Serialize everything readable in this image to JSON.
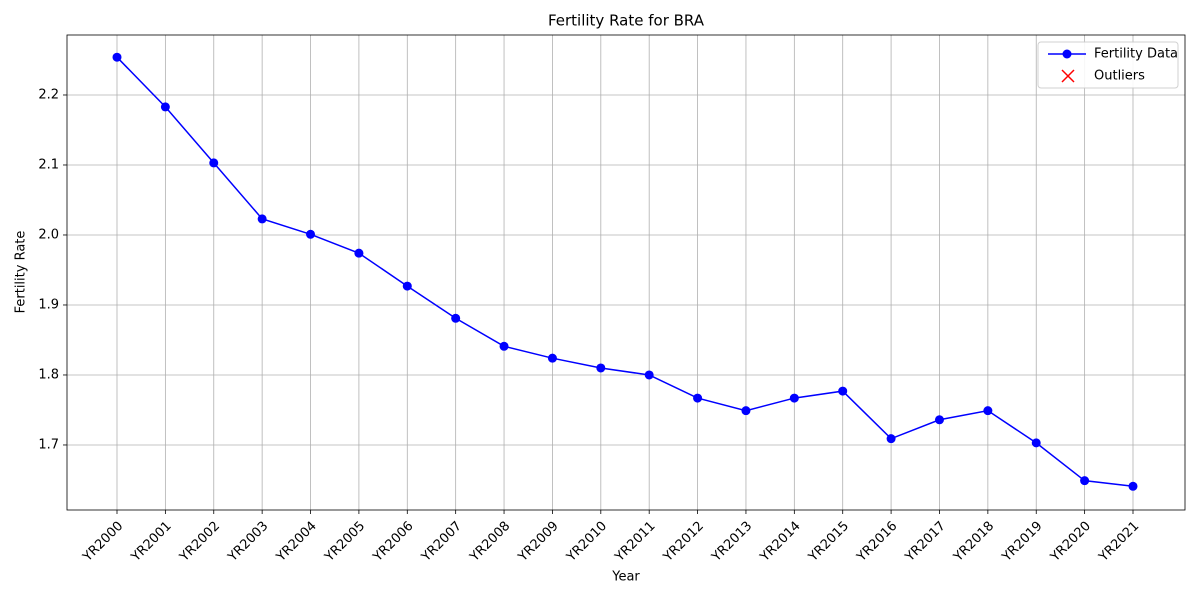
{
  "chart_data": {
    "type": "line",
    "title": "Fertility Rate for BRA",
    "xlabel": "Year",
    "ylabel": "Fertility Rate",
    "categories": [
      "YR2000",
      "YR2001",
      "YR2002",
      "YR2003",
      "YR2004",
      "YR2005",
      "YR2006",
      "YR2007",
      "YR2008",
      "YR2009",
      "YR2010",
      "YR2011",
      "YR2012",
      "YR2013",
      "YR2014",
      "YR2015",
      "YR2016",
      "YR2017",
      "YR2018",
      "YR2019",
      "YR2020",
      "YR2021"
    ],
    "series": [
      {
        "name": "Fertility Data",
        "color": "#0000ff",
        "marker": "o",
        "values": [
          2.254,
          2.183,
          2.103,
          2.023,
          2.001,
          1.974,
          1.927,
          1.881,
          1.841,
          1.824,
          1.81,
          1.8,
          1.767,
          1.749,
          1.767,
          1.777,
          1.709,
          1.736,
          1.749,
          1.703,
          1.649,
          1.641
        ]
      },
      {
        "name": "Outliers",
        "color": "#ff0000",
        "marker": "x",
        "values": [
          null,
          null,
          null,
          null,
          null,
          null,
          null,
          null,
          null,
          null,
          null,
          null,
          null,
          null,
          null,
          null,
          null,
          null,
          null,
          null,
          null,
          null
        ]
      }
    ],
    "ylim": [
      1.6071,
      2.2857
    ],
    "yticks": [
      1.7,
      1.8,
      1.9,
      2.0,
      2.1,
      2.2
    ],
    "grid": true,
    "legend": "upper right"
  }
}
